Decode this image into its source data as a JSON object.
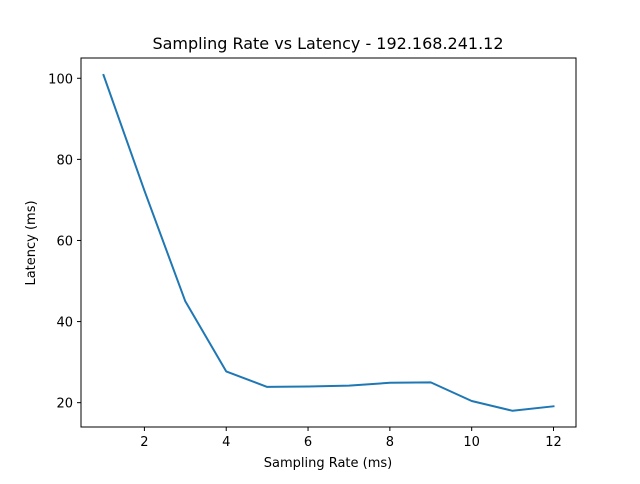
{
  "chart_data": {
    "type": "line",
    "title": "Sampling Rate vs Latency - 192.168.241.12",
    "xlabel": "Sampling Rate (ms)",
    "ylabel": "Latency (ms)",
    "xlim": [
      0.45,
      12.55
    ],
    "ylim": [
      14.0,
      105.0
    ],
    "xticks": [
      2,
      4,
      6,
      8,
      10,
      12
    ],
    "yticks": [
      20,
      40,
      60,
      80,
      100
    ],
    "grid": false,
    "series": [
      {
        "color": "#1f77b4",
        "x": [
          1,
          2,
          3,
          4,
          5,
          6,
          7,
          8,
          9,
          10,
          11,
          12
        ],
        "y": [
          100.8,
          72.3,
          45.0,
          27.7,
          23.9,
          24.0,
          24.2,
          24.9,
          25.0,
          20.4,
          18.0,
          19.1
        ]
      }
    ]
  }
}
